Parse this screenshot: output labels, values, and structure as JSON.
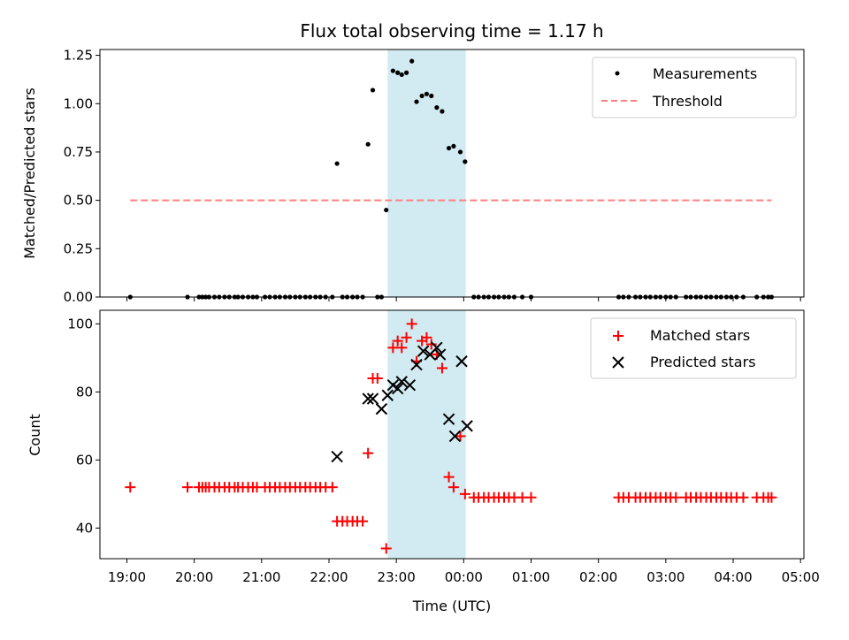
{
  "chart_data": [
    {
      "type": "scatter",
      "title": "Flux total observing time = 1.17 h",
      "xlabel": "",
      "ylabel": "Matched/Predicted stars",
      "xlim": [
        18.6,
        29.05
      ],
      "ylim": [
        0,
        1.28
      ],
      "x_tick_values": [
        19,
        20,
        21,
        22,
        23,
        24,
        25,
        26,
        27,
        28,
        29
      ],
      "y_ticks": [
        0.0,
        0.25,
        0.5,
        0.75,
        1.0,
        1.25
      ],
      "y_tick_labels": [
        "0.00",
        "0.25",
        "0.50",
        "0.75",
        "1.00",
        "1.25"
      ],
      "highlight_span": [
        22.87,
        24.03
      ],
      "highlight_color": "#add8e6",
      "series": [
        {
          "name": "Measurements",
          "color": "#000000",
          "marker": "dot",
          "points": [
            [
              19.05,
              0
            ],
            [
              19.9,
              0
            ],
            [
              20.07,
              0
            ],
            [
              20.12,
              0
            ],
            [
              20.17,
              0
            ],
            [
              20.22,
              0
            ],
            [
              20.3,
              0
            ],
            [
              20.37,
              0
            ],
            [
              20.45,
              0
            ],
            [
              20.52,
              0
            ],
            [
              20.6,
              0
            ],
            [
              20.65,
              0
            ],
            [
              20.72,
              0
            ],
            [
              20.8,
              0
            ],
            [
              20.87,
              0
            ],
            [
              20.93,
              0
            ],
            [
              21.05,
              0
            ],
            [
              21.12,
              0
            ],
            [
              21.2,
              0
            ],
            [
              21.27,
              0
            ],
            [
              21.35,
              0
            ],
            [
              21.42,
              0
            ],
            [
              21.5,
              0
            ],
            [
              21.57,
              0
            ],
            [
              21.65,
              0
            ],
            [
              21.72,
              0
            ],
            [
              21.8,
              0
            ],
            [
              21.87,
              0
            ],
            [
              21.95,
              0
            ],
            [
              22.05,
              0
            ],
            [
              22.12,
              0.69
            ],
            [
              22.2,
              0
            ],
            [
              22.27,
              0
            ],
            [
              22.35,
              0
            ],
            [
              22.42,
              0
            ],
            [
              22.5,
              0
            ],
            [
              22.58,
              0.79
            ],
            [
              22.65,
              1.07
            ],
            [
              22.72,
              0
            ],
            [
              22.78,
              0
            ],
            [
              22.85,
              0.45
            ],
            [
              22.95,
              1.17
            ],
            [
              23.02,
              1.16
            ],
            [
              23.08,
              1.15
            ],
            [
              23.15,
              1.16
            ],
            [
              23.23,
              1.22
            ],
            [
              23.3,
              1.01
            ],
            [
              23.38,
              1.04
            ],
            [
              23.45,
              1.05
            ],
            [
              23.52,
              1.04
            ],
            [
              23.6,
              0.98
            ],
            [
              23.68,
              0.96
            ],
            [
              23.78,
              0.77
            ],
            [
              23.85,
              0.78
            ],
            [
              23.95,
              0.75
            ],
            [
              24.02,
              0.7
            ],
            [
              24.15,
              0
            ],
            [
              24.22,
              0
            ],
            [
              24.3,
              0
            ],
            [
              24.37,
              0
            ],
            [
              24.45,
              0
            ],
            [
              24.52,
              0
            ],
            [
              24.6,
              0
            ],
            [
              24.67,
              0
            ],
            [
              24.75,
              0
            ],
            [
              24.87,
              0
            ],
            [
              25.0,
              0
            ],
            [
              26.3,
              0
            ],
            [
              26.37,
              0
            ],
            [
              26.45,
              0
            ],
            [
              26.55,
              0
            ],
            [
              26.62,
              0
            ],
            [
              26.7,
              0
            ],
            [
              26.77,
              0
            ],
            [
              26.85,
              0
            ],
            [
              26.92,
              0
            ],
            [
              27.0,
              0
            ],
            [
              27.07,
              0
            ],
            [
              27.15,
              0
            ],
            [
              27.3,
              0
            ],
            [
              27.37,
              0
            ],
            [
              27.45,
              0
            ],
            [
              27.52,
              0
            ],
            [
              27.6,
              0
            ],
            [
              27.67,
              0
            ],
            [
              27.75,
              0
            ],
            [
              27.82,
              0
            ],
            [
              27.9,
              0
            ],
            [
              27.97,
              0
            ],
            [
              28.05,
              0
            ],
            [
              28.15,
              0
            ],
            [
              28.35,
              0
            ],
            [
              28.45,
              0
            ],
            [
              28.52,
              0
            ],
            [
              28.57,
              0
            ]
          ]
        },
        {
          "name": "Threshold",
          "color": "#ff7f7f",
          "line": "dashed",
          "points": [
            [
              19.05,
              0.5
            ],
            [
              28.57,
              0.5
            ]
          ]
        }
      ],
      "legend": {
        "location": "upper right",
        "entries": [
          "Measurements",
          "Threshold"
        ]
      }
    },
    {
      "type": "scatter",
      "title": "",
      "xlabel": "Time (UTC)",
      "ylabel": "Count",
      "xlim": [
        18.6,
        29.05
      ],
      "ylim": [
        31,
        104
      ],
      "x_tick_values": [
        19,
        20,
        21,
        22,
        23,
        24,
        25,
        26,
        27,
        28,
        29
      ],
      "x_tick_labels": [
        "19:00",
        "20:00",
        "21:00",
        "22:00",
        "23:00",
        "00:00",
        "01:00",
        "02:00",
        "03:00",
        "04:00",
        "05:00"
      ],
      "y_ticks": [
        40,
        60,
        80,
        100
      ],
      "y_tick_labels": [
        "40",
        "60",
        "80",
        "100"
      ],
      "highlight_span": [
        22.87,
        24.03
      ],
      "highlight_color": "#add8e6",
      "series": [
        {
          "name": "Matched stars",
          "color": "#ff0000",
          "marker": "plus",
          "points": [
            [
              19.05,
              52
            ],
            [
              19.9,
              52
            ],
            [
              20.07,
              52
            ],
            [
              20.12,
              52
            ],
            [
              20.17,
              52
            ],
            [
              20.22,
              52
            ],
            [
              20.3,
              52
            ],
            [
              20.37,
              52
            ],
            [
              20.45,
              52
            ],
            [
              20.52,
              52
            ],
            [
              20.6,
              52
            ],
            [
              20.65,
              52
            ],
            [
              20.72,
              52
            ],
            [
              20.8,
              52
            ],
            [
              20.87,
              52
            ],
            [
              20.93,
              52
            ],
            [
              21.05,
              52
            ],
            [
              21.12,
              52
            ],
            [
              21.2,
              52
            ],
            [
              21.27,
              52
            ],
            [
              21.35,
              52
            ],
            [
              21.42,
              52
            ],
            [
              21.5,
              52
            ],
            [
              21.57,
              52
            ],
            [
              21.65,
              52
            ],
            [
              21.72,
              52
            ],
            [
              21.8,
              52
            ],
            [
              21.87,
              52
            ],
            [
              21.95,
              52
            ],
            [
              22.05,
              52
            ],
            [
              22.12,
              42
            ],
            [
              22.2,
              42
            ],
            [
              22.27,
              42
            ],
            [
              22.35,
              42
            ],
            [
              22.42,
              42
            ],
            [
              22.5,
              42
            ],
            [
              22.58,
              62
            ],
            [
              22.65,
              84
            ],
            [
              22.72,
              84
            ],
            [
              22.85,
              34
            ],
            [
              22.95,
              93
            ],
            [
              23.02,
              95
            ],
            [
              23.08,
              93
            ],
            [
              23.15,
              96
            ],
            [
              23.23,
              100
            ],
            [
              23.3,
              89
            ],
            [
              23.38,
              95
            ],
            [
              23.45,
              96
            ],
            [
              23.52,
              94
            ],
            [
              23.6,
              91
            ],
            [
              23.68,
              87
            ],
            [
              23.78,
              55
            ],
            [
              23.85,
              52
            ],
            [
              23.95,
              67
            ],
            [
              24.02,
              50
            ],
            [
              24.15,
              49
            ],
            [
              24.22,
              49
            ],
            [
              24.3,
              49
            ],
            [
              24.37,
              49
            ],
            [
              24.45,
              49
            ],
            [
              24.52,
              49
            ],
            [
              24.6,
              49
            ],
            [
              24.67,
              49
            ],
            [
              24.75,
              49
            ],
            [
              24.87,
              49
            ],
            [
              25.0,
              49
            ],
            [
              26.3,
              49
            ],
            [
              26.37,
              49
            ],
            [
              26.45,
              49
            ],
            [
              26.55,
              49
            ],
            [
              26.62,
              49
            ],
            [
              26.7,
              49
            ],
            [
              26.77,
              49
            ],
            [
              26.85,
              49
            ],
            [
              26.92,
              49
            ],
            [
              27.0,
              49
            ],
            [
              27.07,
              49
            ],
            [
              27.15,
              49
            ],
            [
              27.3,
              49
            ],
            [
              27.37,
              49
            ],
            [
              27.45,
              49
            ],
            [
              27.52,
              49
            ],
            [
              27.6,
              49
            ],
            [
              27.67,
              49
            ],
            [
              27.75,
              49
            ],
            [
              27.82,
              49
            ],
            [
              27.9,
              49
            ],
            [
              27.97,
              49
            ],
            [
              28.05,
              49
            ],
            [
              28.15,
              49
            ],
            [
              28.35,
              49
            ],
            [
              28.45,
              49
            ],
            [
              28.52,
              49
            ],
            [
              28.57,
              49
            ]
          ]
        },
        {
          "name": "Predicted stars",
          "color": "#000000",
          "marker": "x",
          "points": [
            [
              22.12,
              61
            ],
            [
              22.58,
              78
            ],
            [
              22.65,
              78
            ],
            [
              22.78,
              75
            ],
            [
              22.87,
              79
            ],
            [
              22.95,
              82
            ],
            [
              23.02,
              81
            ],
            [
              23.08,
              83
            ],
            [
              23.2,
              82
            ],
            [
              23.3,
              88
            ],
            [
              23.4,
              92
            ],
            [
              23.5,
              91
            ],
            [
              23.6,
              93
            ],
            [
              23.65,
              91
            ],
            [
              23.78,
              72
            ],
            [
              23.87,
              67
            ],
            [
              23.97,
              89
            ],
            [
              24.05,
              70
            ]
          ]
        }
      ],
      "legend": {
        "location": "upper right",
        "entries": [
          "Matched stars",
          "Predicted stars"
        ]
      }
    }
  ]
}
